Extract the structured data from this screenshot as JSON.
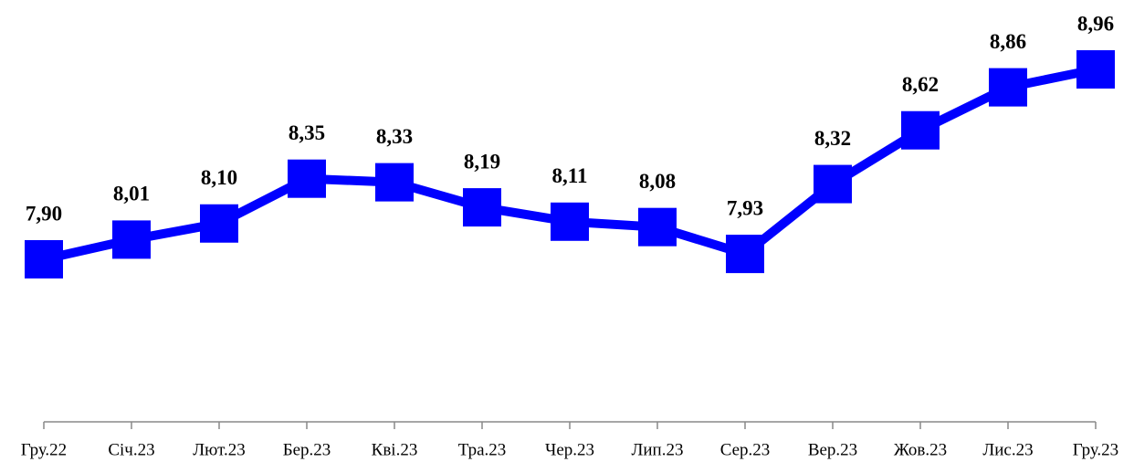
{
  "chart_data": {
    "type": "line",
    "categories": [
      "Гру.22",
      "Січ.23",
      "Лют.23",
      "Бер.23",
      "Кві.23",
      "Тра.23",
      "Чер.23",
      "Лип.23",
      "Сер.23",
      "Вер.23",
      "Жов.23",
      "Лис.23",
      "Гру.23"
    ],
    "series": [
      {
        "color": "#0000ff",
        "values": [
          7.9,
          8.01,
          8.1,
          8.35,
          8.33,
          8.19,
          8.11,
          8.08,
          7.93,
          8.32,
          8.62,
          8.86,
          8.96
        ],
        "value_labels": [
          "7,90",
          "8,01",
          "8,10",
          "8,35",
          "8,33",
          "8,19",
          "8,11",
          "8,08",
          "7,93",
          "8,32",
          "8,62",
          "8,86",
          "8,96"
        ]
      }
    ]
  }
}
